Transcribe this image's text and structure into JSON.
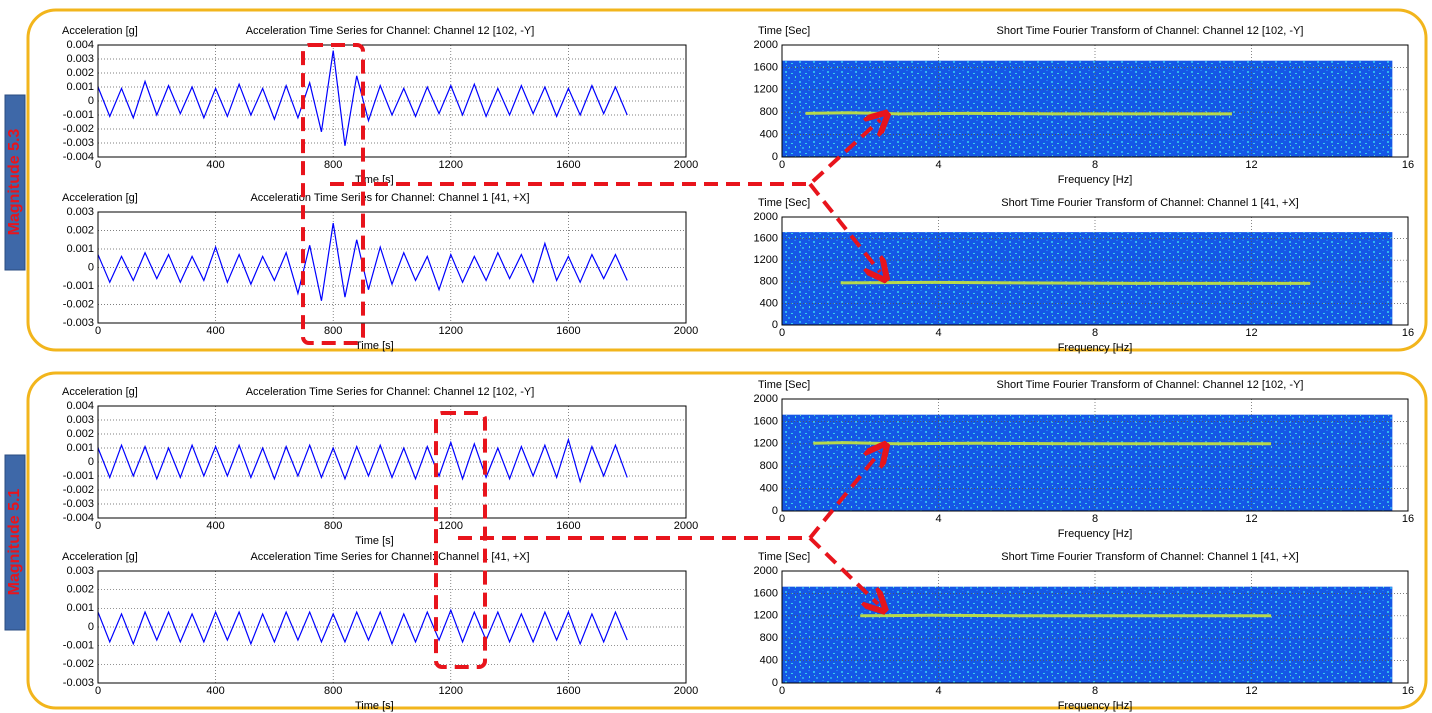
{
  "labels": [
    "Magnitude 5.3",
    "Magnitude 5.1"
  ],
  "chart_data": [
    {
      "type": "line",
      "title": "Acceleration Time Series for Channel: Channel 12 [102, -Y]",
      "y_label": "Acceleration [g]",
      "x_label": "Time [s]",
      "color": "#0000ff",
      "grid": true,
      "xlim": [
        0,
        2000
      ],
      "xticks": [
        0,
        400,
        800,
        1200,
        1600,
        2000
      ],
      "ylim": [
        -0.004,
        0.004
      ],
      "yticks": [
        0.004,
        0.003,
        0.002,
        0.001,
        0,
        -0.001,
        -0.002,
        -0.003,
        -0.004
      ],
      "x": [
        0,
        40,
        80,
        120,
        160,
        200,
        240,
        280,
        320,
        360,
        400,
        440,
        480,
        520,
        560,
        600,
        640,
        680,
        720,
        760,
        800,
        840,
        880,
        920,
        960,
        1000,
        1040,
        1080,
        1120,
        1160,
        1200,
        1240,
        1280,
        1320,
        1360,
        1400,
        1440,
        1480,
        1520,
        1560,
        1600,
        1640,
        1680,
        1720,
        1760,
        1800
      ],
      "values": [
        0.001,
        -0.0011,
        0.0009,
        -0.0012,
        0.0014,
        -0.001,
        0.0011,
        -0.0009,
        0.001,
        -0.0012,
        0.0009,
        -0.0011,
        0.0012,
        -0.001,
        0.0009,
        -0.0013,
        0.0011,
        -0.0012,
        0.0013,
        -0.0022,
        0.0036,
        -0.0032,
        0.0018,
        -0.0014,
        0.0011,
        -0.001,
        0.0009,
        -0.0011,
        0.001,
        -0.0009,
        0.0011,
        -0.001,
        0.0012,
        -0.0011,
        0.0009,
        -0.001,
        0.0011,
        -0.0009,
        0.001,
        -0.0011,
        0.0009,
        -0.001,
        0.0011,
        -0.0009,
        0.001,
        -0.001
      ]
    },
    {
      "type": "line",
      "title": "Acceleration Time Series for Channel: Channel 1 [41, +X]",
      "y_label": "Acceleration [g]",
      "x_label": "Time [s]",
      "color": "#0000ff",
      "grid": true,
      "xlim": [
        0,
        2000
      ],
      "xticks": [
        0,
        400,
        800,
        1200,
        1600,
        2000
      ],
      "ylim": [
        -0.003,
        0.003
      ],
      "yticks": [
        0.003,
        0.002,
        0.001,
        0,
        -0.001,
        -0.002,
        -0.003
      ],
      "x": [
        0,
        40,
        80,
        120,
        160,
        200,
        240,
        280,
        320,
        360,
        400,
        440,
        480,
        520,
        560,
        600,
        640,
        680,
        720,
        760,
        800,
        840,
        880,
        920,
        960,
        1000,
        1040,
        1080,
        1120,
        1160,
        1200,
        1240,
        1280,
        1320,
        1360,
        1400,
        1440,
        1480,
        1520,
        1560,
        1600,
        1640,
        1680,
        1720,
        1760,
        1800
      ],
      "values": [
        0.0007,
        -0.0008,
        0.0006,
        -0.0007,
        0.0008,
        -0.0006,
        0.0007,
        -0.0008,
        0.0006,
        -0.0007,
        0.0011,
        -0.0008,
        0.0007,
        -0.0009,
        0.0006,
        -0.0007,
        0.0008,
        -0.0014,
        0.0012,
        -0.0018,
        0.0024,
        -0.0016,
        0.0015,
        -0.0012,
        0.0011,
        -0.0009,
        0.0008,
        -0.0007,
        0.0006,
        -0.0012,
        0.0007,
        -0.0008,
        0.0006,
        -0.0007,
        0.0008,
        -0.0006,
        0.0007,
        -0.0008,
        0.0013,
        -0.0007,
        0.0006,
        -0.0008,
        0.0007,
        -0.0006,
        0.0007,
        -0.0007
      ]
    },
    {
      "type": "spectrogram",
      "title": "Short Time Fourier Transform of Channel: Channel 12 [102, -Y]",
      "y_label": "Time [Sec]",
      "x_label": "Frequency [Hz]",
      "grid": true,
      "xlim": [
        0,
        16
      ],
      "xticks": [
        0,
        4,
        8,
        12,
        16
      ],
      "ylim": [
        0,
        2000
      ],
      "yticks": [
        0,
        400,
        800,
        1200,
        1600,
        2000
      ],
      "image_xlim": [
        0,
        15.6
      ],
      "image_ylim": [
        0,
        1720
      ],
      "x": [
        0.6,
        1.7,
        3,
        4.7,
        7,
        9,
        11.5
      ],
      "values": [
        780,
        790,
        770,
        780,
        770,
        770,
        770
      ]
    },
    {
      "type": "spectrogram",
      "title": "Short Time Fourier Transform of Channel: Channel 1 [41, +X]",
      "y_label": "Time [Sec]",
      "x_label": "Frequency [Hz]",
      "grid": true,
      "xlim": [
        0,
        16
      ],
      "xticks": [
        0,
        4,
        8,
        12,
        16
      ],
      "ylim": [
        0,
        2000
      ],
      "yticks": [
        0,
        400,
        800,
        1200,
        1600,
        2000
      ],
      "image_xlim": [
        0,
        15.6
      ],
      "image_ylim": [
        0,
        1720
      ],
      "x": [
        1.5,
        3.8,
        6,
        9,
        12,
        13.5
      ],
      "values": [
        780,
        790,
        780,
        770,
        770,
        770
      ]
    },
    {
      "type": "line",
      "title": "Acceleration Time Series for Channel: Channel 12 [102, -Y]",
      "y_label": "Acceleration [g]",
      "x_label": "Time [s]",
      "color": "#0000ff",
      "grid": true,
      "xlim": [
        0,
        2000
      ],
      "xticks": [
        0,
        400,
        800,
        1200,
        1600,
        2000
      ],
      "ylim": [
        -0.004,
        0.004
      ],
      "yticks": [
        0.004,
        0.003,
        0.002,
        0.001,
        0,
        -0.001,
        -0.002,
        -0.003,
        -0.004
      ],
      "x": [
        0,
        40,
        80,
        120,
        160,
        200,
        240,
        280,
        320,
        360,
        400,
        440,
        480,
        520,
        560,
        600,
        640,
        680,
        720,
        760,
        800,
        840,
        880,
        920,
        960,
        1000,
        1040,
        1080,
        1120,
        1160,
        1200,
        1240,
        1280,
        1320,
        1360,
        1400,
        1440,
        1480,
        1520,
        1560,
        1600,
        1640,
        1680,
        1720,
        1760,
        1800
      ],
      "values": [
        0.001,
        -0.0011,
        0.0012,
        -0.001,
        0.0011,
        -0.0012,
        0.001,
        -0.0011,
        0.0012,
        -0.001,
        0.0011,
        -0.001,
        0.0012,
        -0.0011,
        0.001,
        -0.0012,
        0.0011,
        -0.001,
        0.0012,
        -0.0011,
        0.001,
        -0.0012,
        0.0011,
        -0.001,
        0.0012,
        -0.0011,
        0.001,
        -0.0012,
        0.0011,
        -0.001,
        0.0014,
        -0.0012,
        0.0013,
        -0.0011,
        0.001,
        -0.0012,
        0.0011,
        -0.001,
        0.0012,
        -0.0011,
        0.0016,
        -0.0014,
        0.0011,
        -0.001,
        0.0012,
        -0.0011
      ]
    },
    {
      "type": "line",
      "title": "Acceleration Time Series for Channel: Channel 1 [41, +X]",
      "y_label": "Acceleration [g]",
      "x_label": "Time [s]",
      "color": "#0000ff",
      "grid": true,
      "xlim": [
        0,
        2000
      ],
      "xticks": [
        0,
        400,
        800,
        1200,
        1600,
        2000
      ],
      "ylim": [
        -0.003,
        0.003
      ],
      "yticks": [
        0.003,
        0.002,
        0.001,
        0,
        -0.001,
        -0.002,
        -0.003
      ],
      "x": [
        0,
        40,
        80,
        120,
        160,
        200,
        240,
        280,
        320,
        360,
        400,
        440,
        480,
        520,
        560,
        600,
        640,
        680,
        720,
        760,
        800,
        840,
        880,
        920,
        960,
        1000,
        1040,
        1080,
        1120,
        1160,
        1200,
        1240,
        1280,
        1320,
        1360,
        1400,
        1440,
        1480,
        1520,
        1560,
        1600,
        1640,
        1680,
        1720,
        1760,
        1800
      ],
      "values": [
        0.0008,
        -0.0008,
        0.0007,
        -0.0009,
        0.0008,
        -0.0007,
        0.0008,
        -0.0008,
        0.0007,
        -0.0008,
        0.0008,
        -0.0007,
        0.0008,
        -0.0009,
        0.0007,
        -0.0008,
        0.0008,
        -0.0007,
        0.0008,
        -0.0008,
        0.0007,
        -0.0008,
        0.0008,
        -0.0007,
        0.0008,
        -0.0009,
        0.0007,
        -0.0008,
        0.0008,
        -0.0007,
        0.0009,
        -0.0008,
        0.0008,
        -0.0007,
        0.0008,
        -0.0008,
        0.0007,
        -0.0008,
        0.0008,
        -0.0007,
        0.0008,
        -0.0009,
        0.0007,
        -0.0008,
        0.0008,
        -0.0007
      ]
    },
    {
      "type": "spectrogram",
      "title": "Short Time Fourier Transform of Channel: Channel 12 [102, -Y]",
      "y_label": "Time [Sec]",
      "x_label": "Frequency [Hz]",
      "grid": true,
      "xlim": [
        0,
        16
      ],
      "xticks": [
        0,
        4,
        8,
        12,
        16
      ],
      "ylim": [
        0,
        2000
      ],
      "yticks": [
        0,
        400,
        800,
        1200,
        1600,
        2000
      ],
      "image_xlim": [
        0,
        15.6
      ],
      "image_ylim": [
        0,
        1720
      ],
      "x": [
        0.8,
        1.6,
        3,
        5,
        7.5,
        10,
        12.5
      ],
      "values": [
        1210,
        1220,
        1200,
        1210,
        1200,
        1200,
        1200
      ]
    },
    {
      "type": "spectrogram",
      "title": "Short Time Fourier Transform of Channel: Channel 1 [41, +X]",
      "y_label": "Time [Sec]",
      "x_label": "Frequency [Hz]",
      "grid": true,
      "xlim": [
        0,
        16
      ],
      "xticks": [
        0,
        4,
        8,
        12,
        16
      ],
      "ylim": [
        0,
        2000
      ],
      "yticks": [
        0,
        400,
        800,
        1200,
        1600,
        2000
      ],
      "image_xlim": [
        0,
        15.6
      ],
      "image_ylim": [
        0,
        1720
      ],
      "x": [
        2,
        3.8,
        6,
        9,
        12.5
      ],
      "values": [
        1200,
        1210,
        1200,
        1200,
        1200
      ]
    }
  ]
}
